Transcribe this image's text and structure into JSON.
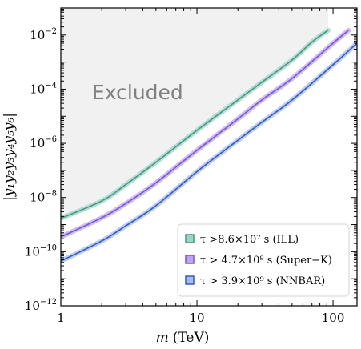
{
  "chart_data": {
    "type": "line",
    "xlabel_var": "m",
    "xlabel_unit": "(TeV)",
    "ylabel": "|y₁y₂y₃y₄y₅y₆|",
    "x_scale": "log",
    "y_scale": "log",
    "xlim": [
      1,
      150
    ],
    "ylim": [
      1e-12,
      0.1
    ],
    "x_ticks": [
      {
        "value": 1,
        "label": "1"
      },
      {
        "value": 10,
        "label": "10"
      },
      {
        "value": 100,
        "label": "100"
      }
    ],
    "y_ticks": [
      {
        "value": 1e-12,
        "base": "10",
        "exp": "−12"
      },
      {
        "value": 1e-10,
        "base": "10",
        "exp": "−10"
      },
      {
        "value": 1e-08,
        "base": "10",
        "exp": "−8"
      },
      {
        "value": 1e-06,
        "base": "10",
        "exp": "−6"
      },
      {
        "value": 0.0001,
        "base": "10",
        "exp": "−4"
      },
      {
        "value": 0.01,
        "base": "10",
        "exp": "−2"
      }
    ],
    "annotation": "Excluded",
    "excluded_fill": "#f1f1f1",
    "legend_position": "lower-right",
    "series": [
      {
        "name": "τ >8.6×10⁷ s (ILL)",
        "color": "#3e9c86",
        "band_color": "#9fd3c4",
        "points": [
          [
            1,
            1.7e-09
          ],
          [
            2,
            7.5e-09
          ],
          [
            3,
            3e-08
          ],
          [
            5,
            2e-07
          ],
          [
            10,
            3e-06
          ],
          [
            20,
            4e-05
          ],
          [
            30,
            0.00018
          ],
          [
            50,
            0.0012
          ],
          [
            70,
            0.0055
          ],
          [
            92,
            0.015
          ]
        ]
      },
      {
        "name": "τ > 4.7×10⁸ s (Super−K)",
        "color": "#7b55d9",
        "band_color": "#bba6ee",
        "points": [
          [
            1,
            3.5e-10
          ],
          [
            2,
            1.8e-09
          ],
          [
            3,
            6e-09
          ],
          [
            5,
            3.5e-08
          ],
          [
            10,
            5.5e-07
          ],
          [
            20,
            8e-06
          ],
          [
            30,
            4e-05
          ],
          [
            50,
            0.00025
          ],
          [
            100,
            0.005
          ],
          [
            130,
            0.015
          ]
        ]
      },
      {
        "name": "τ > 3.9×10⁹ s (NNBAR)",
        "color": "#3359c4",
        "band_color": "#a6bcee",
        "points": [
          [
            1,
            4.5e-11
          ],
          [
            2,
            2.5e-10
          ],
          [
            3,
            9e-10
          ],
          [
            5,
            5e-09
          ],
          [
            10,
            9e-08
          ],
          [
            20,
            1.3e-06
          ],
          [
            30,
            6e-06
          ],
          [
            50,
            4e-05
          ],
          [
            100,
            0.0008
          ],
          [
            150,
            0.005
          ]
        ]
      }
    ],
    "grid": false
  }
}
